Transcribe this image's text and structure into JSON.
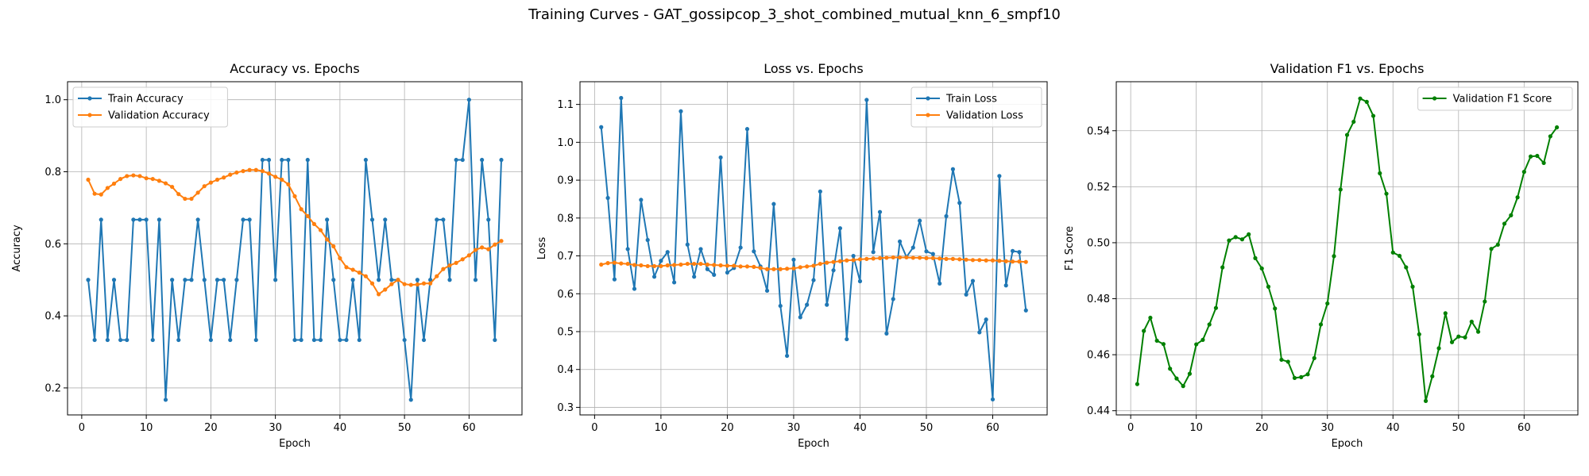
{
  "figure": {
    "suptitle": "Training Curves - GAT_gossipcop_3_shot_combined_mutual_knn_6_smpf10"
  },
  "chart_data": [
    {
      "type": "line",
      "title": "Accuracy vs. Epochs",
      "xlabel": "Epoch",
      "ylabel": "Accuracy",
      "xlim": [
        -2.2,
        68.2
      ],
      "ylim": [
        0.125,
        1.05
      ],
      "xticks": [
        0,
        10,
        20,
        30,
        40,
        50,
        60
      ],
      "yticks": [
        0.2,
        0.4,
        0.6,
        0.8,
        1.0
      ],
      "ytick_decimals": 1,
      "grid": true,
      "legend_position": "upper left",
      "x": [
        1,
        2,
        3,
        4,
        5,
        6,
        7,
        8,
        9,
        10,
        11,
        12,
        13,
        14,
        15,
        16,
        17,
        18,
        19,
        20,
        21,
        22,
        23,
        24,
        25,
        26,
        27,
        28,
        29,
        30,
        31,
        32,
        33,
        34,
        35,
        36,
        37,
        38,
        39,
        40,
        41,
        42,
        43,
        44,
        45,
        46,
        47,
        48,
        49,
        50,
        51,
        52,
        53,
        54,
        55,
        56,
        57,
        58,
        59,
        60,
        61,
        62,
        63,
        64,
        65
      ],
      "series": [
        {
          "name": "Train Accuracy",
          "color": "#1f77b4",
          "values": [
            0.5,
            0.333,
            0.667,
            0.333,
            0.5,
            0.333,
            0.333,
            0.667,
            0.667,
            0.667,
            0.333,
            0.667,
            0.167,
            0.5,
            0.333,
            0.5,
            0.5,
            0.667,
            0.5,
            0.333,
            0.5,
            0.5,
            0.333,
            0.5,
            0.667,
            0.667,
            0.333,
            0.833,
            0.833,
            0.5,
            0.833,
            0.833,
            0.333,
            0.333,
            0.833,
            0.333,
            0.333,
            0.667,
            0.5,
            0.333,
            0.333,
            0.5,
            0.333,
            0.833,
            0.667,
            0.5,
            0.667,
            0.5,
            0.5,
            0.333,
            0.167,
            0.5,
            0.333,
            0.5,
            0.667,
            0.667,
            0.5,
            0.833,
            0.833,
            1.0,
            0.5,
            0.833,
            0.667,
            0.333,
            0.833
          ]
        },
        {
          "name": "Validation Accuracy",
          "color": "#ff7f0e",
          "values": [
            0.778,
            0.739,
            0.737,
            0.755,
            0.767,
            0.78,
            0.788,
            0.79,
            0.788,
            0.782,
            0.78,
            0.775,
            0.768,
            0.758,
            0.738,
            0.725,
            0.725,
            0.742,
            0.76,
            0.77,
            0.778,
            0.784,
            0.792,
            0.798,
            0.802,
            0.805,
            0.805,
            0.802,
            0.795,
            0.786,
            0.778,
            0.765,
            0.732,
            0.696,
            0.677,
            0.655,
            0.638,
            0.612,
            0.593,
            0.56,
            0.535,
            0.528,
            0.52,
            0.51,
            0.49,
            0.46,
            0.473,
            0.488,
            0.5,
            0.488,
            0.486,
            0.487,
            0.49,
            0.49,
            0.51,
            0.53,
            0.54,
            0.547,
            0.557,
            0.568,
            0.583,
            0.59,
            0.585,
            0.598,
            0.608
          ]
        }
      ]
    },
    {
      "type": "line",
      "title": "Loss vs. Epochs",
      "xlabel": "Epoch",
      "ylabel": "Loss",
      "xlim": [
        -2.2,
        68.2
      ],
      "ylim": [
        0.28,
        1.16
      ],
      "xticks": [
        0,
        10,
        20,
        30,
        40,
        50,
        60
      ],
      "yticks": [
        0.3,
        0.4,
        0.5,
        0.6,
        0.7,
        0.8,
        0.9,
        1.0,
        1.1
      ],
      "ytick_decimals": 1,
      "grid": true,
      "legend_position": "upper right",
      "x": [
        1,
        2,
        3,
        4,
        5,
        6,
        7,
        8,
        9,
        10,
        11,
        12,
        13,
        14,
        15,
        16,
        17,
        18,
        19,
        20,
        21,
        22,
        23,
        24,
        25,
        26,
        27,
        28,
        29,
        30,
        31,
        32,
        33,
        34,
        35,
        36,
        37,
        38,
        39,
        40,
        41,
        42,
        43,
        44,
        45,
        46,
        47,
        48,
        49,
        50,
        51,
        52,
        53,
        54,
        55,
        56,
        57,
        58,
        59,
        60,
        61,
        62,
        63,
        64,
        65
      ],
      "series": [
        {
          "name": "Train Loss",
          "color": "#1f77b4",
          "values": [
            1.04,
            0.853,
            0.638,
            1.117,
            0.718,
            0.613,
            0.848,
            0.742,
            0.645,
            0.687,
            0.71,
            0.63,
            1.082,
            0.73,
            0.645,
            0.718,
            0.665,
            0.65,
            0.96,
            0.656,
            0.668,
            0.722,
            1.035,
            0.712,
            0.672,
            0.608,
            0.837,
            0.568,
            0.436,
            0.69,
            0.538,
            0.571,
            0.636,
            0.87,
            0.571,
            0.662,
            0.773,
            0.48,
            0.7,
            0.633,
            1.112,
            0.71,
            0.816,
            0.495,
            0.586,
            0.738,
            0.697,
            0.722,
            0.793,
            0.712,
            0.705,
            0.627,
            0.805,
            0.929,
            0.84,
            0.598,
            0.634,
            0.498,
            0.532,
            0.321,
            0.911,
            0.622,
            0.713,
            0.71,
            0.556
          ]
        },
        {
          "name": "Validation Loss",
          "color": "#ff7f0e",
          "values": [
            0.677,
            0.681,
            0.682,
            0.68,
            0.679,
            0.676,
            0.675,
            0.673,
            0.673,
            0.673,
            0.675,
            0.676,
            0.677,
            0.679,
            0.679,
            0.679,
            0.677,
            0.676,
            0.675,
            0.674,
            0.674,
            0.672,
            0.672,
            0.671,
            0.668,
            0.665,
            0.665,
            0.665,
            0.666,
            0.667,
            0.67,
            0.672,
            0.674,
            0.679,
            0.682,
            0.684,
            0.686,
            0.688,
            0.689,
            0.691,
            0.692,
            0.693,
            0.694,
            0.695,
            0.696,
            0.696,
            0.696,
            0.695,
            0.695,
            0.694,
            0.694,
            0.693,
            0.692,
            0.692,
            0.691,
            0.69,
            0.689,
            0.689,
            0.688,
            0.688,
            0.687,
            0.686,
            0.685,
            0.685,
            0.684
          ]
        }
      ]
    },
    {
      "type": "line",
      "title": "Validation F1 vs. Epochs",
      "xlabel": "Epoch",
      "ylabel": "F1 Score",
      "xlim": [
        -2.2,
        68.2
      ],
      "ylim": [
        0.4385,
        0.5575
      ],
      "xticks": [
        0,
        10,
        20,
        30,
        40,
        50,
        60
      ],
      "yticks": [
        0.44,
        0.46,
        0.48,
        0.5,
        0.52,
        0.54
      ],
      "ytick_decimals": 2,
      "grid": true,
      "legend_position": "upper right",
      "x": [
        1,
        2,
        3,
        4,
        5,
        6,
        7,
        8,
        9,
        10,
        11,
        12,
        13,
        14,
        15,
        16,
        17,
        18,
        19,
        20,
        21,
        22,
        23,
        24,
        25,
        26,
        27,
        28,
        29,
        30,
        31,
        32,
        33,
        34,
        35,
        36,
        37,
        38,
        39,
        40,
        41,
        42,
        43,
        44,
        45,
        46,
        47,
        48,
        49,
        50,
        51,
        52,
        53,
        54,
        55,
        56,
        57,
        58,
        59,
        60,
        61,
        62,
        63,
        64,
        65
      ],
      "series": [
        {
          "name": "Validation F1 Score",
          "color": "#008000",
          "values": [
            0.4495,
            0.4685,
            0.4732,
            0.465,
            0.4638,
            0.455,
            0.4515,
            0.4488,
            0.4532,
            0.4637,
            0.4653,
            0.4708,
            0.4767,
            0.4912,
            0.5008,
            0.502,
            0.5012,
            0.503,
            0.4945,
            0.4908,
            0.4843,
            0.4765,
            0.4582,
            0.4575,
            0.4517,
            0.452,
            0.453,
            0.4588,
            0.4708,
            0.4783,
            0.4952,
            0.519,
            0.5385,
            0.5432,
            0.5515,
            0.5503,
            0.5453,
            0.5248,
            0.5175,
            0.4965,
            0.4953,
            0.4912,
            0.4843,
            0.4673,
            0.4435,
            0.4523,
            0.4623,
            0.4748,
            0.4645,
            0.4665,
            0.4662,
            0.4718,
            0.4682,
            0.479,
            0.4978,
            0.4993,
            0.5068,
            0.5098,
            0.5162,
            0.5253,
            0.5308,
            0.531,
            0.5285,
            0.538,
            0.5412
          ]
        }
      ]
    }
  ]
}
